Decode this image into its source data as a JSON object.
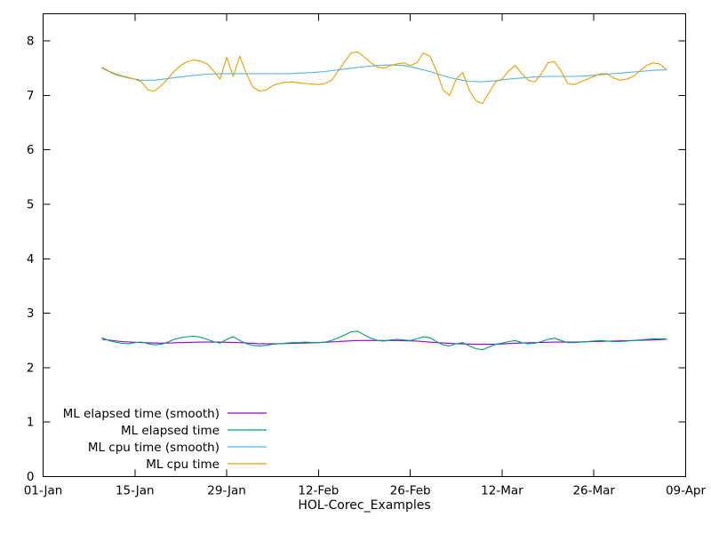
{
  "chart_data": {
    "type": "line",
    "title": "",
    "xlabel": "HOL-Corec_Examples",
    "ylabel": "",
    "ylim": [
      0,
      8.5
    ],
    "xlim_days": [
      0,
      98
    ],
    "grid": false,
    "legend_position": "inside-bottom-left",
    "y_ticks": [
      0,
      1,
      2,
      3,
      4,
      5,
      6,
      7,
      8
    ],
    "x_ticks": [
      {
        "day": 0,
        "label": "01-Jan"
      },
      {
        "day": 14,
        "label": "15-Jan"
      },
      {
        "day": 28,
        "label": "29-Jan"
      },
      {
        "day": 42,
        "label": "12-Feb"
      },
      {
        "day": 56,
        "label": "26-Feb"
      },
      {
        "day": 70,
        "label": "12-Mar"
      },
      {
        "day": 84,
        "label": "26-Mar"
      },
      {
        "day": 98,
        "label": "09-Apr"
      }
    ],
    "series": [
      {
        "name": "ML elapsed time (smooth)",
        "color": "#9400d3",
        "x": [
          9,
          12,
          15,
          18,
          21,
          24,
          27,
          30,
          33,
          36,
          39,
          42,
          45,
          48,
          51,
          54,
          57,
          60,
          63,
          66,
          69,
          72,
          75,
          78,
          81,
          84,
          87,
          90,
          93,
          95
        ],
        "values": [
          2.52,
          2.48,
          2.46,
          2.45,
          2.46,
          2.47,
          2.47,
          2.46,
          2.44,
          2.44,
          2.45,
          2.46,
          2.48,
          2.5,
          2.5,
          2.5,
          2.49,
          2.46,
          2.44,
          2.43,
          2.43,
          2.45,
          2.46,
          2.47,
          2.47,
          2.48,
          2.49,
          2.5,
          2.51,
          2.52
        ]
      },
      {
        "name": "ML elapsed time",
        "color": "#009e73",
        "x": [
          9,
          10,
          11,
          12,
          13,
          14,
          15,
          16,
          17,
          18,
          19,
          20,
          21,
          22,
          23,
          24,
          25,
          26,
          27,
          28,
          29,
          30,
          31,
          32,
          33,
          34,
          35,
          36,
          37,
          38,
          39,
          40,
          41,
          42,
          43,
          44,
          45,
          46,
          47,
          48,
          49,
          50,
          51,
          52,
          53,
          54,
          55,
          56,
          57,
          58,
          59,
          60,
          61,
          62,
          63,
          64,
          65,
          66,
          67,
          68,
          69,
          70,
          71,
          72,
          73,
          74,
          75,
          76,
          77,
          78,
          79,
          80,
          81,
          82,
          83,
          84,
          85,
          86,
          87,
          88,
          89,
          90,
          91,
          92,
          93,
          94,
          95
        ],
        "values": [
          2.55,
          2.5,
          2.47,
          2.45,
          2.44,
          2.46,
          2.47,
          2.44,
          2.42,
          2.43,
          2.47,
          2.52,
          2.55,
          2.57,
          2.58,
          2.56,
          2.52,
          2.48,
          2.45,
          2.52,
          2.57,
          2.5,
          2.44,
          2.41,
          2.4,
          2.41,
          2.43,
          2.44,
          2.45,
          2.46,
          2.46,
          2.47,
          2.46,
          2.46,
          2.47,
          2.5,
          2.55,
          2.6,
          2.66,
          2.67,
          2.6,
          2.54,
          2.5,
          2.49,
          2.51,
          2.52,
          2.51,
          2.5,
          2.53,
          2.57,
          2.55,
          2.48,
          2.42,
          2.4,
          2.44,
          2.46,
          2.4,
          2.35,
          2.33,
          2.38,
          2.43,
          2.45,
          2.48,
          2.5,
          2.46,
          2.44,
          2.45,
          2.48,
          2.52,
          2.54,
          2.5,
          2.46,
          2.46,
          2.47,
          2.48,
          2.49,
          2.5,
          2.49,
          2.48,
          2.48,
          2.49,
          2.5,
          2.51,
          2.52,
          2.53,
          2.53,
          2.53
        ]
      },
      {
        "name": "ML cpu time (smooth)",
        "color": "#56b4e9",
        "x": [
          9,
          11,
          13,
          15,
          17,
          19,
          21,
          23,
          25,
          27,
          29,
          31,
          33,
          35,
          37,
          39,
          41,
          43,
          45,
          47,
          49,
          51,
          53,
          55,
          57,
          59,
          61,
          63,
          65,
          67,
          69,
          71,
          73,
          75,
          77,
          79,
          81,
          83,
          85,
          87,
          89,
          91,
          93,
          95
        ],
        "values": [
          7.5,
          7.38,
          7.32,
          7.28,
          7.28,
          7.31,
          7.34,
          7.37,
          7.39,
          7.4,
          7.4,
          7.4,
          7.4,
          7.4,
          7.4,
          7.41,
          7.42,
          7.44,
          7.47,
          7.5,
          7.53,
          7.55,
          7.56,
          7.55,
          7.5,
          7.44,
          7.36,
          7.3,
          7.26,
          7.25,
          7.27,
          7.3,
          7.32,
          7.34,
          7.35,
          7.35,
          7.35,
          7.36,
          7.38,
          7.4,
          7.42,
          7.44,
          7.46,
          7.47
        ]
      },
      {
        "name": "ML cpu time",
        "color": "#e69f00",
        "x": [
          9,
          10,
          11,
          12,
          13,
          14,
          15,
          16,
          17,
          18,
          19,
          20,
          21,
          22,
          23,
          24,
          25,
          26,
          27,
          28,
          29,
          30,
          31,
          32,
          33,
          34,
          35,
          36,
          37,
          38,
          39,
          40,
          41,
          42,
          43,
          44,
          45,
          46,
          47,
          48,
          49,
          50,
          51,
          52,
          53,
          54,
          55,
          56,
          57,
          58,
          59,
          60,
          61,
          62,
          63,
          64,
          65,
          66,
          67,
          68,
          69,
          70,
          71,
          72,
          73,
          74,
          75,
          76,
          77,
          78,
          79,
          80,
          81,
          82,
          83,
          84,
          85,
          86,
          87,
          88,
          89,
          90,
          91,
          92,
          93,
          94,
          95
        ],
        "values": [
          7.52,
          7.45,
          7.4,
          7.36,
          7.33,
          7.3,
          7.25,
          7.1,
          7.08,
          7.18,
          7.3,
          7.45,
          7.55,
          7.62,
          7.65,
          7.63,
          7.58,
          7.45,
          7.3,
          7.7,
          7.35,
          7.72,
          7.4,
          7.15,
          7.08,
          7.1,
          7.18,
          7.22,
          7.24,
          7.25,
          7.23,
          7.22,
          7.21,
          7.2,
          7.22,
          7.28,
          7.45,
          7.62,
          7.78,
          7.8,
          7.7,
          7.6,
          7.52,
          7.5,
          7.55,
          7.58,
          7.6,
          7.55,
          7.6,
          7.78,
          7.72,
          7.45,
          7.1,
          7.0,
          7.3,
          7.42,
          7.1,
          6.9,
          6.85,
          7.05,
          7.25,
          7.3,
          7.45,
          7.55,
          7.4,
          7.28,
          7.25,
          7.4,
          7.6,
          7.62,
          7.45,
          7.22,
          7.2,
          7.25,
          7.3,
          7.35,
          7.4,
          7.4,
          7.32,
          7.28,
          7.3,
          7.35,
          7.45,
          7.55,
          7.6,
          7.58,
          7.48
        ]
      }
    ]
  },
  "colors": {
    "background": "#ffffff",
    "axis": "#000000",
    "text": "#000000"
  }
}
